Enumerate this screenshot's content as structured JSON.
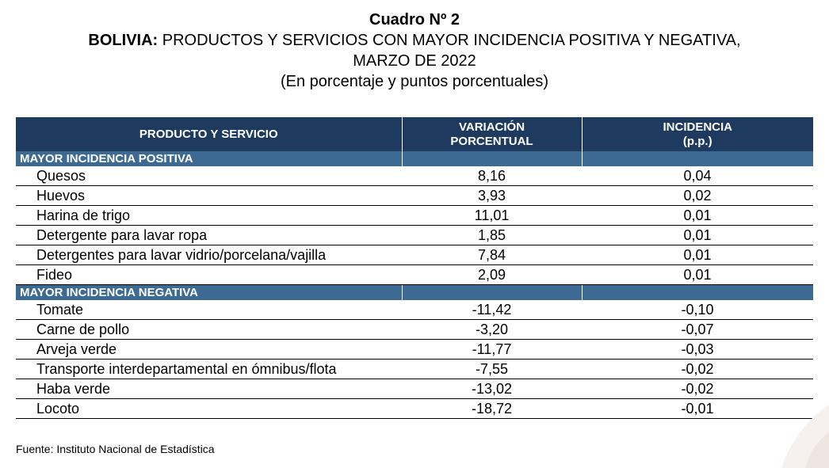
{
  "title": {
    "line1": "Cuadro Nº 2",
    "line2_bold": "BOLIVIA:",
    "line2_rest": " PRODUCTOS Y SERVICIOS CON MAYOR INCIDENCIA POSITIVA Y NEGATIVA,",
    "line3": "MARZO DE 2022",
    "line4": "(En porcentaje y puntos porcentuales)"
  },
  "table": {
    "headers": {
      "product": "PRODUCTO Y SERVICIO",
      "variation_l1": "VARIACIÓN",
      "variation_l2": "PORCENTUAL",
      "incidence_l1": "INCIDENCIA",
      "incidence_l2": "(p.p.)"
    },
    "sections": [
      {
        "label": "MAYOR INCIDENCIA POSITIVA",
        "rows": [
          {
            "name": "Quesos",
            "variation": "8,16",
            "incidence": "0,04"
          },
          {
            "name": "Huevos",
            "variation": "3,93",
            "incidence": "0,02"
          },
          {
            "name": "Harina de trigo",
            "variation": "11,01",
            "incidence": "0,01"
          },
          {
            "name": "Detergente para lavar ropa",
            "variation": "1,85",
            "incidence": "0,01"
          },
          {
            "name": "Detergentes para lavar vidrio/porcelana/vajilla",
            "variation": "7,84",
            "incidence": "0,01"
          },
          {
            "name": "Fideo",
            "variation": "2,09",
            "incidence": "0,01"
          }
        ]
      },
      {
        "label": "MAYOR INCIDENCIA NEGATIVA",
        "rows": [
          {
            "name": "Tomate",
            "variation": "-11,42",
            "incidence": "-0,10"
          },
          {
            "name": "Carne de pollo",
            "variation": "-3,20",
            "incidence": "-0,07"
          },
          {
            "name": "Arveja verde",
            "variation": "-11,77",
            "incidence": "-0,03"
          },
          {
            "name": "Transporte interdepartamental en ómnibus/flota",
            "variation": "-7,55",
            "incidence": "-0,02"
          },
          {
            "name": "Haba verde",
            "variation": "-13,02",
            "incidence": "-0,02"
          },
          {
            "name": "Locoto",
            "variation": "-18,72",
            "incidence": "-0,01"
          }
        ]
      }
    ]
  },
  "source": "Fuente: Instituto Nacional de Estadística",
  "colors": {
    "header_bg": "#1f3a5f",
    "section_bg": "#3c6a93"
  }
}
